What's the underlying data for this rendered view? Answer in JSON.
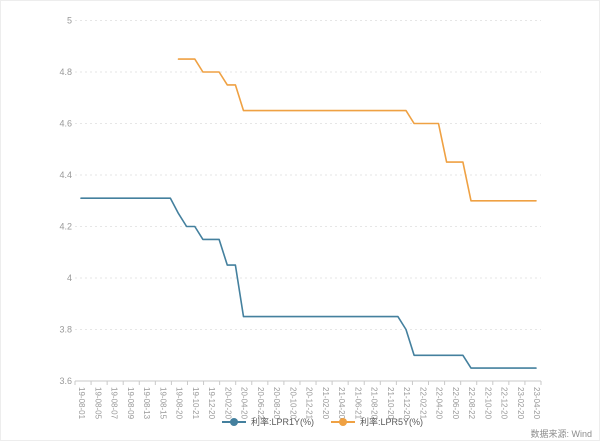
{
  "source_note": "数据来源: Wind",
  "colors": {
    "background": "#ffffff",
    "grid": "#e6e6e6",
    "axis": "#c9c9c9",
    "tick_label": "#999999",
    "legend_text": "#595959",
    "lpr1y": "#44809E",
    "lpr5y": "#EFA143"
  },
  "chart_data": {
    "type": "line",
    "title": "",
    "xlabel": "",
    "ylabel": "",
    "grid": true,
    "legend_position": "bottom",
    "num_points": 57,
    "label_every": 2,
    "x_tick_labels": [
      "19-08-01",
      "19-08-05",
      "19-08-07",
      "19-08-09",
      "19-08-13",
      "19-08-15",
      "19-08-20",
      "19-10-21",
      "19-12-20",
      "20-02-20",
      "20-04-20",
      "20-06-22",
      "20-08-20",
      "20-10-20",
      "20-12-21",
      "21-02-20",
      "21-04-20",
      "21-06-21",
      "21-08-20",
      "21-10-20",
      "21-12-20",
      "22-02-21",
      "22-04-20",
      "22-06-20",
      "22-08-22",
      "22-10-20",
      "22-12-20",
      "23-02-20",
      "23-04-20"
    ],
    "y_axis": {
      "min": 3.6,
      "max": 5,
      "tick_values": [
        3.6,
        3.8,
        4.0,
        4.2,
        4.4,
        4.6,
        4.8,
        5.0
      ],
      "tick_labels": [
        "3.6",
        "3.8",
        "4",
        "4.2",
        "4.4",
        "4.6",
        "4.8",
        "5"
      ]
    },
    "series": [
      {
        "name": "利率:LPR1Y(%)",
        "color": "#44809E",
        "values": [
          4.31,
          4.31,
          4.31,
          4.31,
          4.31,
          4.31,
          4.31,
          4.31,
          4.31,
          4.31,
          4.31,
          4.31,
          4.25,
          4.2,
          4.2,
          4.15,
          4.15,
          4.15,
          4.05,
          4.05,
          3.85,
          3.85,
          3.85,
          3.85,
          3.85,
          3.85,
          3.85,
          3.85,
          3.85,
          3.85,
          3.85,
          3.85,
          3.85,
          3.85,
          3.85,
          3.85,
          3.85,
          3.85,
          3.85,
          3.85,
          3.8,
          3.7,
          3.7,
          3.7,
          3.7,
          3.7,
          3.7,
          3.7,
          3.65,
          3.65,
          3.65,
          3.65,
          3.65,
          3.65,
          3.65,
          3.65,
          3.65
        ]
      },
      {
        "name": "利率:LPR5Y(%)",
        "color": "#EFA143",
        "values": [
          null,
          null,
          null,
          null,
          null,
          null,
          null,
          null,
          null,
          null,
          null,
          null,
          4.85,
          4.85,
          4.85,
          4.8,
          4.8,
          4.8,
          4.75,
          4.75,
          4.65,
          4.65,
          4.65,
          4.65,
          4.65,
          4.65,
          4.65,
          4.65,
          4.65,
          4.65,
          4.65,
          4.65,
          4.65,
          4.65,
          4.65,
          4.65,
          4.65,
          4.65,
          4.65,
          4.65,
          4.65,
          4.6,
          4.6,
          4.6,
          4.6,
          4.45,
          4.45,
          4.45,
          4.3,
          4.3,
          4.3,
          4.3,
          4.3,
          4.3,
          4.3,
          4.3,
          4.3
        ]
      }
    ]
  }
}
